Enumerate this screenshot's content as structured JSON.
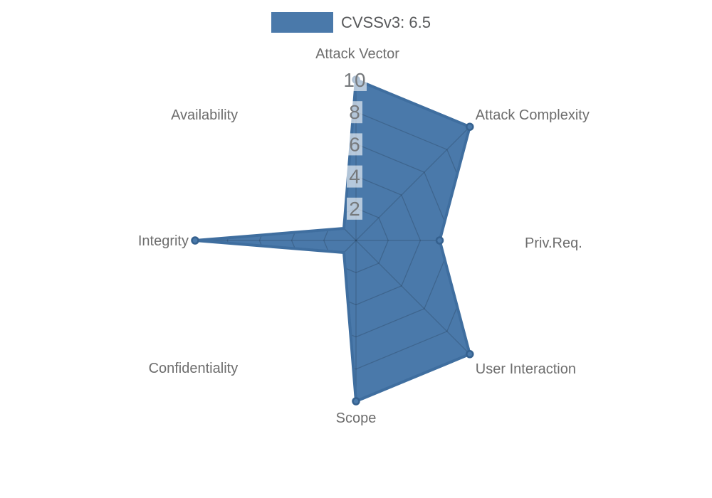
{
  "legend": {
    "label": "CVSSv3: 6.5"
  },
  "chart_data": {
    "type": "radar",
    "title": "CVSSv3: 6.5",
    "legend_position": "top-center",
    "axes": [
      "Attack Vector",
      "Attack Complexity",
      "Priv.Req.",
      "User Interaction",
      "Scope",
      "Confidentiality",
      "Integrity",
      "Availability"
    ],
    "series": [
      {
        "name": "CVSSv3: 6.5",
        "values": [
          10,
          10,
          5.2,
          10,
          10,
          0,
          10,
          0
        ]
      }
    ],
    "radial_range": [
      0,
      10
    ],
    "ticks": [
      2,
      4,
      6,
      8,
      10
    ],
    "grid": "spider-web, visible only inside filled area",
    "colors": {
      "fill": "#4a79aa",
      "outline": "#3f6e9f",
      "marker_ring": "#35618f",
      "grid_line": "rgba(0,0,0,0.16)",
      "tick_box": "rgba(255,255,255,0.6)",
      "tick_text": "#76797c",
      "axis_label_text": "#6d6d6d",
      "legend_text": "#58595b"
    }
  }
}
